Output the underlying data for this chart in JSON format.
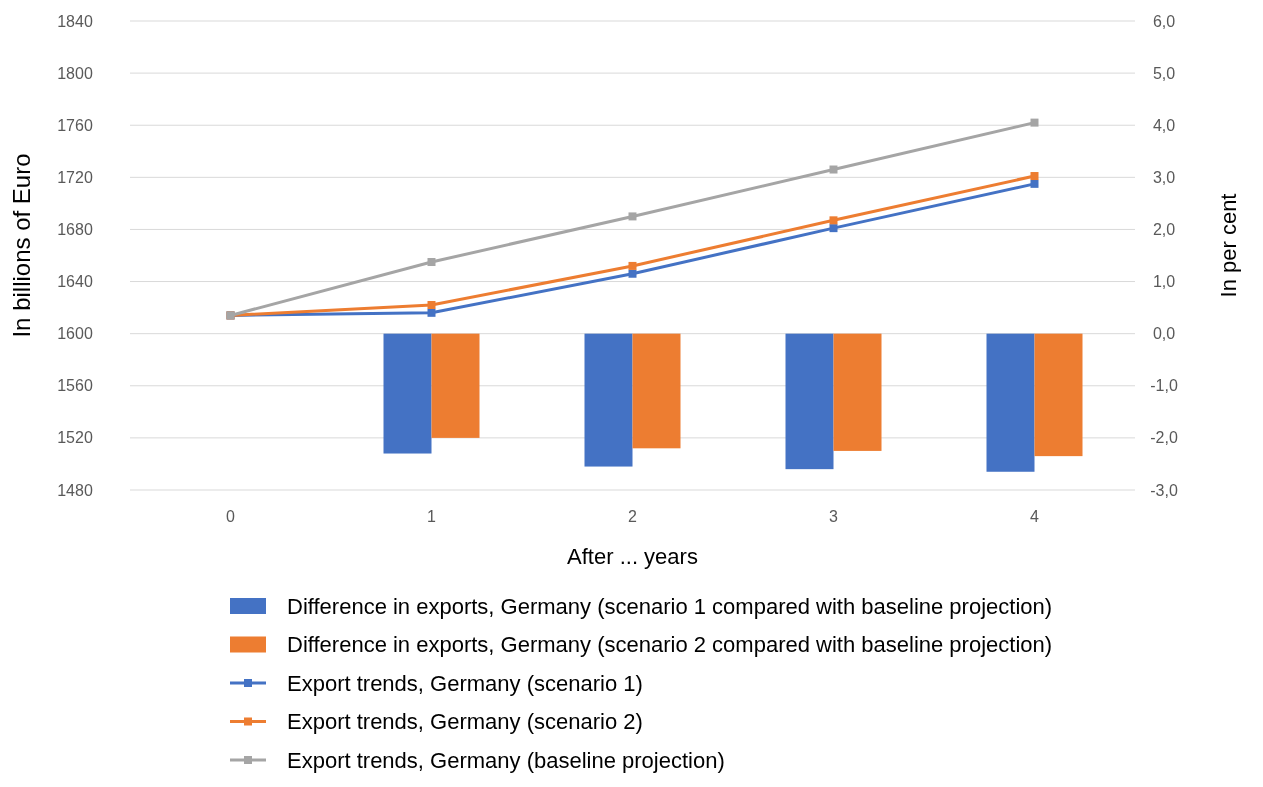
{
  "chart_data": {
    "type": "bar",
    "categories": [
      "0",
      "1",
      "2",
      "3",
      "4"
    ],
    "xlabel": "After ... years",
    "ylabel": "In billions of Euro",
    "y2label": "In per cent",
    "series": [
      {
        "name": "Difference in exports, Germany (scenario 1 compared with baseline projection)",
        "axis": "y2",
        "color": "#4472c4",
        "values": [
          null,
          -2.3,
          -2.55,
          -2.6,
          -2.65
        ]
      },
      {
        "name": "Difference in exports, Germany (scenario 2 compared with baseline projection)",
        "axis": "y2",
        "color": "#ed7d31",
        "values": [
          null,
          -2.0,
          -2.2,
          -2.25,
          -2.35
        ]
      },
      {
        "name": "Export trends, Germany (scenario 1)",
        "type": "line",
        "axis": "y",
        "color": "#4472c4",
        "values": [
          1614,
          1616,
          1646,
          1681,
          1715
        ]
      },
      {
        "name": "Export trends, Germany (scenario 2)",
        "type": "line",
        "axis": "y",
        "color": "#ed7d31",
        "values": [
          1614,
          1622,
          1652,
          1687,
          1721
        ]
      },
      {
        "name": "Export trends, Germany (baseline projection)",
        "type": "line",
        "axis": "y",
        "color": "#a5a5a5",
        "values": [
          1614,
          1655,
          1690,
          1726,
          1762
        ]
      }
    ],
    "ylim": [
      1480,
      1840
    ],
    "yticks": [
      1480,
      1520,
      1560,
      1600,
      1640,
      1680,
      1720,
      1760,
      1800,
      1840
    ],
    "y2lim": [
      -3,
      6
    ],
    "y2ticks": [
      {
        "value": -3,
        "label": "-3,0"
      },
      {
        "value": -2,
        "label": "-2,0"
      },
      {
        "value": -1,
        "label": "-1,0"
      },
      {
        "value": 0,
        "label": "0,0"
      },
      {
        "value": 1,
        "label": "1,0"
      },
      {
        "value": 2,
        "label": "2,0"
      },
      {
        "value": 3,
        "label": "3,0"
      },
      {
        "value": 4,
        "label": "4,0"
      },
      {
        "value": 5,
        "label": "5,0"
      },
      {
        "value": 6,
        "label": "6,0"
      }
    ],
    "grid": "y",
    "legend": "bottom",
    "marker": "square",
    "line_style": "solid"
  }
}
